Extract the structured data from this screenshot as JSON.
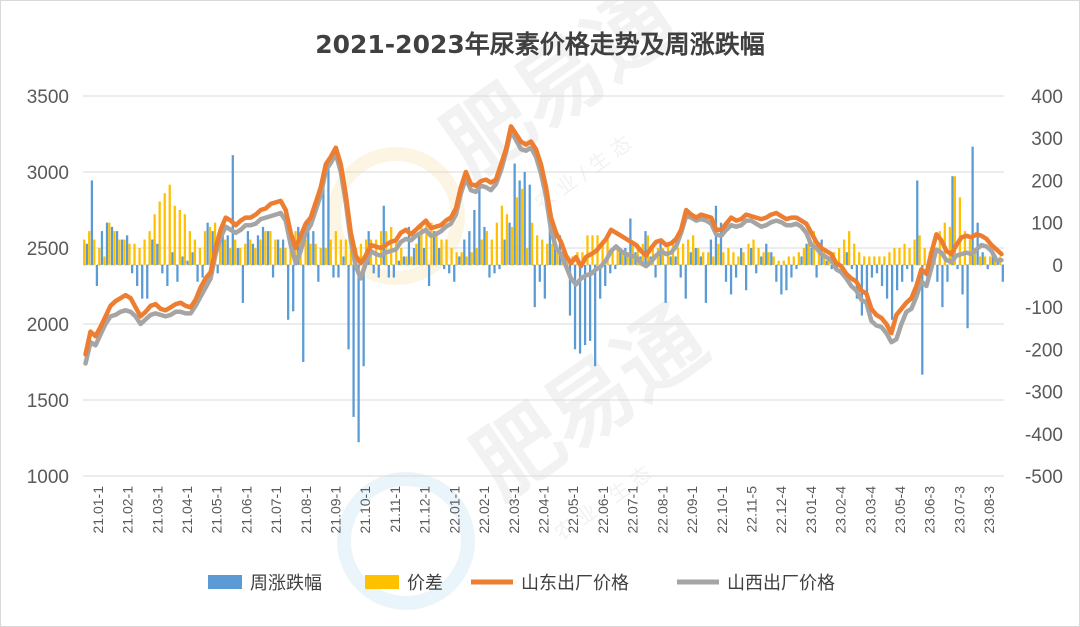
{
  "watermark": {
    "brand": "肥易通",
    "tagline": "农 业 / 生 态"
  },
  "chart_data": {
    "type": "combo",
    "title": "2021-2023年尿素价格走势及周涨跌幅",
    "left_axis": {
      "ylim": [
        1000,
        3500
      ],
      "ticks": [
        "1000",
        "1500",
        "2000",
        "2500",
        "3000",
        "3500"
      ]
    },
    "right_axis": {
      "ylim": [
        -500,
        400
      ],
      "ticks": [
        "-500",
        "-400",
        "-300",
        "-200",
        "-100",
        "0",
        "100",
        "200",
        "300",
        "400"
      ]
    },
    "x_tick_labels": [
      "21.01-1",
      "21.02-1",
      "21.03-1",
      "21.04-1",
      "21.05-1",
      "21.06-1",
      "21.07-1",
      "21.08-1",
      "21.09-1",
      "21.10-1",
      "21.11-1",
      "21.12-1",
      "22.01-1",
      "22.02-1",
      "22.03-1",
      "22.04-1",
      "22.05-1",
      "22.06-1",
      "22.07-1",
      "22.08-1",
      "22.09-1",
      "22.10-1",
      "22.11-5",
      "22.12-4",
      "23.01-4",
      "23.02-4",
      "23.03-4",
      "23.05-4",
      "23.06-3",
      "23.07-3",
      "23.08-3"
    ],
    "grid": true,
    "legend_position": "bottom",
    "colors": {
      "weekly_change": "#5b9bd5",
      "spread": "#ffc000",
      "shandong": "#ed7d31",
      "shanxi": "#a5a5a5"
    },
    "series": [
      {
        "name": "周涨跌幅",
        "type": "bar",
        "axis": "right",
        "values": [
          50,
          200,
          -50,
          80,
          100,
          90,
          80,
          60,
          70,
          -20,
          -50,
          -80,
          -80,
          60,
          50,
          -20,
          -50,
          30,
          -40,
          20,
          10,
          30,
          -40,
          -30,
          100,
          80,
          -20,
          90,
          70,
          260,
          40,
          -90,
          80,
          50,
          70,
          90,
          80,
          -30,
          60,
          60,
          -130,
          -110,
          90,
          -230,
          100,
          80,
          -40,
          200,
          230,
          -30,
          -30,
          20,
          -200,
          -360,
          -420,
          -240,
          80,
          -20,
          -30,
          140,
          -30,
          -30,
          10,
          20,
          90,
          40,
          70,
          40,
          -50,
          80,
          40,
          -10,
          -20,
          -40,
          20,
          60,
          80,
          130,
          200,
          90,
          -30,
          -20,
          -10,
          60,
          100,
          240,
          200,
          220,
          190,
          -100,
          -40,
          -80,
          90,
          80,
          70,
          20,
          -120,
          -200,
          -210,
          -190,
          -180,
          -240,
          -80,
          -50,
          -20,
          -10,
          40,
          40,
          110,
          30,
          20,
          80,
          20,
          -30,
          60,
          -90,
          20,
          20,
          -30,
          -80,
          30,
          40,
          20,
          -90,
          60,
          140,
          100,
          -40,
          -70,
          -30,
          40,
          -60,
          40,
          -20,
          20,
          50,
          30,
          -40,
          -70,
          -60,
          -30,
          -10,
          20,
          50,
          40,
          -30,
          60,
          10,
          -10,
          -10,
          -10,
          30,
          -10,
          -80,
          -120,
          -100,
          -30,
          -20,
          -50,
          -80,
          -130,
          -60,
          -40,
          -10,
          -40,
          200,
          -260,
          -40,
          40,
          -40,
          -100,
          -40,
          210,
          -10,
          -70,
          -150,
          280,
          100,
          30,
          -10,
          20,
          10,
          -40
        ],
        "spread": [
          60,
          80,
          60,
          40,
          20,
          100,
          80,
          60,
          60,
          50,
          50,
          40,
          60,
          80,
          120,
          150,
          170,
          190,
          140,
          130,
          120,
          80,
          60,
          40,
          80,
          90,
          100,
          80,
          60,
          40,
          60,
          40,
          50,
          60,
          40,
          60,
          80,
          80,
          60,
          40,
          40,
          60,
          80,
          70,
          60,
          50,
          50,
          40,
          40,
          60,
          80,
          60,
          60,
          50,
          40,
          50,
          60,
          60,
          60,
          80,
          80,
          90,
          60,
          40,
          20,
          20,
          50,
          90,
          100,
          100,
          80,
          60,
          60,
          40,
          30,
          30,
          20,
          30,
          40,
          60,
          80,
          60,
          100,
          140,
          120,
          90,
          160,
          180,
          40,
          100,
          70,
          60,
          50,
          50,
          30,
          20,
          20,
          20,
          30,
          30,
          70,
          70,
          70,
          50,
          60,
          40,
          40,
          30,
          30,
          50,
          50,
          50,
          70,
          40,
          40,
          40,
          50,
          60,
          40,
          50,
          60,
          70,
          40,
          30,
          30,
          20,
          50,
          30,
          40,
          30,
          20,
          30,
          50,
          60,
          40,
          30,
          30,
          20,
          10,
          10,
          20,
          20,
          30,
          40,
          60,
          80,
          50,
          30,
          20,
          30,
          40,
          60,
          80,
          50,
          30,
          20,
          20,
          20,
          20,
          20,
          30,
          40,
          40,
          50,
          40,
          60,
          70,
          40,
          30,
          40,
          80,
          100,
          90,
          210,
          160,
          80,
          60,
          40,
          20,
          20,
          20,
          20,
          20,
          10,
          10,
          10
        ]
      },
      {
        "name": "山东出厂价格",
        "type": "line",
        "axis": "left",
        "values": [
          1800,
          1950,
          1920,
          1980,
          2050,
          2120,
          2150,
          2170,
          2190,
          2170,
          2110,
          2050,
          2080,
          2120,
          2130,
          2100,
          2090,
          2110,
          2130,
          2140,
          2120,
          2110,
          2160,
          2240,
          2300,
          2340,
          2500,
          2620,
          2700,
          2680,
          2650,
          2680,
          2700,
          2700,
          2720,
          2750,
          2760,
          2790,
          2800,
          2810,
          2750,
          2600,
          2500,
          2580,
          2660,
          2700,
          2800,
          2900,
          3050,
          3100,
          3160,
          3050,
          2850,
          2600,
          2450,
          2400,
          2450,
          2520,
          2510,
          2500,
          2520,
          2540,
          2550,
          2600,
          2620,
          2590,
          2620,
          2650,
          2680,
          2630,
          2640,
          2650,
          2680,
          2700,
          2760,
          2900,
          3000,
          2920,
          2910,
          2940,
          2950,
          2930,
          2950,
          3050,
          3150,
          3300,
          3250,
          3200,
          3180,
          3200,
          3150,
          3050,
          2900,
          2700,
          2600,
          2540,
          2450,
          2400,
          2440,
          2380,
          2440,
          2460,
          2480,
          2520,
          2560,
          2620,
          2600,
          2580,
          2560,
          2540,
          2520,
          2480,
          2450,
          2500,
          2540,
          2550,
          2520,
          2530,
          2560,
          2620,
          2750,
          2720,
          2700,
          2720,
          2710,
          2700,
          2620,
          2620,
          2660,
          2700,
          2680,
          2690,
          2720,
          2710,
          2700,
          2690,
          2700,
          2720,
          2730,
          2710,
          2690,
          2700,
          2700,
          2680,
          2660,
          2600,
          2540,
          2500,
          2480,
          2460,
          2400,
          2380,
          2330,
          2300,
          2280,
          2220,
          2200,
          2100,
          2060,
          2040,
          2000,
          1940,
          2060,
          2100,
          2140,
          2170,
          2250,
          2360,
          2330,
          2470,
          2590,
          2550,
          2480,
          2460,
          2520,
          2570,
          2580,
          2570,
          2590,
          2580,
          2560,
          2520,
          2490,
          2460
        ]
      },
      {
        "name": "山西出厂价格",
        "type": "line",
        "axis": "left",
        "values": [
          1740,
          1880,
          1860,
          1930,
          2000,
          2050,
          2060,
          2080,
          2090,
          2080,
          2050,
          2000,
          2030,
          2060,
          2070,
          2060,
          2050,
          2060,
          2080,
          2080,
          2070,
          2070,
          2120,
          2180,
          2240,
          2300,
          2460,
          2570,
          2640,
          2620,
          2600,
          2620,
          2650,
          2650,
          2660,
          2690,
          2700,
          2710,
          2720,
          2730,
          2680,
          2520,
          2400,
          2480,
          2600,
          2650,
          2750,
          2850,
          3010,
          3060,
          3120,
          3000,
          2800,
          2550,
          2380,
          2300,
          2400,
          2480,
          2460,
          2450,
          2470,
          2480,
          2490,
          2540,
          2560,
          2550,
          2580,
          2600,
          2620,
          2580,
          2590,
          2610,
          2640,
          2660,
          2720,
          2860,
          2960,
          2880,
          2870,
          2910,
          2900,
          2880,
          2920,
          3010,
          3130,
          3270,
          3210,
          3150,
          3140,
          3160,
          3100,
          2990,
          2840,
          2620,
          2500,
          2460,
          2380,
          2300,
          2260,
          2300,
          2320,
          2330,
          2360,
          2380,
          2420,
          2480,
          2510,
          2480,
          2460,
          2450,
          2440,
          2400,
          2380,
          2410,
          2450,
          2480,
          2460,
          2470,
          2510,
          2600,
          2710,
          2700,
          2680,
          2690,
          2680,
          2660,
          2590,
          2580,
          2620,
          2650,
          2640,
          2650,
          2680,
          2680,
          2660,
          2640,
          2650,
          2670,
          2680,
          2670,
          2650,
          2650,
          2660,
          2640,
          2600,
          2520,
          2500,
          2460,
          2440,
          2420,
          2360,
          2340,
          2300,
          2250,
          2220,
          2160,
          2140,
          2020,
          1990,
          1980,
          1940,
          1880,
          1900,
          2000,
          2080,
          2100,
          2180,
          2280,
          2250,
          2370,
          2490,
          2470,
          2420,
          2410,
          2450,
          2460,
          2470,
          2460,
          2490,
          2520,
          2510,
          2480,
          2420,
          2420
        ]
      }
    ]
  }
}
